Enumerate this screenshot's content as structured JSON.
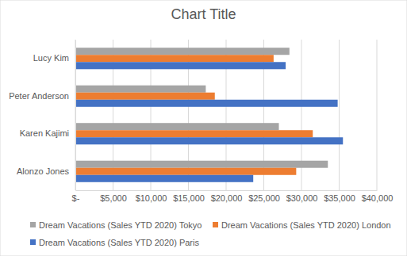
{
  "chart_data": {
    "type": "bar",
    "orientation": "horizontal",
    "title": "Chart Title",
    "categories": [
      "Alonzo Jones",
      "Karen Kajimi",
      "Peter Anderson",
      "Lucy Kim"
    ],
    "series": [
      {
        "name": "Dream Vacations (Sales YTD 2020) Tokyo",
        "color": "#a5a5a5",
        "values": [
          33500,
          27000,
          17300,
          28400
        ]
      },
      {
        "name": "Dream Vacations (Sales YTD 2020) London",
        "color": "#ed7d31",
        "values": [
          29300,
          31500,
          18500,
          26300
        ]
      },
      {
        "name": "Dream Vacations (Sales YTD 2020) Paris",
        "color": "#4472c4",
        "values": [
          23600,
          35500,
          34800,
          27900
        ]
      }
    ],
    "xlim": [
      0,
      40000
    ],
    "xticks": [
      {
        "value": 0,
        "label": "$-"
      },
      {
        "value": 5000,
        "label": "$5,000"
      },
      {
        "value": 10000,
        "label": "$10,000"
      },
      {
        "value": 15000,
        "label": "$15,000"
      },
      {
        "value": 20000,
        "label": "$20,000"
      },
      {
        "value": 25000,
        "label": "$25,000"
      },
      {
        "value": 30000,
        "label": "$30,000"
      },
      {
        "value": 35000,
        "label": "$35,000"
      },
      {
        "value": 40000,
        "label": "$40,000"
      }
    ],
    "grid": true,
    "legend": "bottom"
  }
}
